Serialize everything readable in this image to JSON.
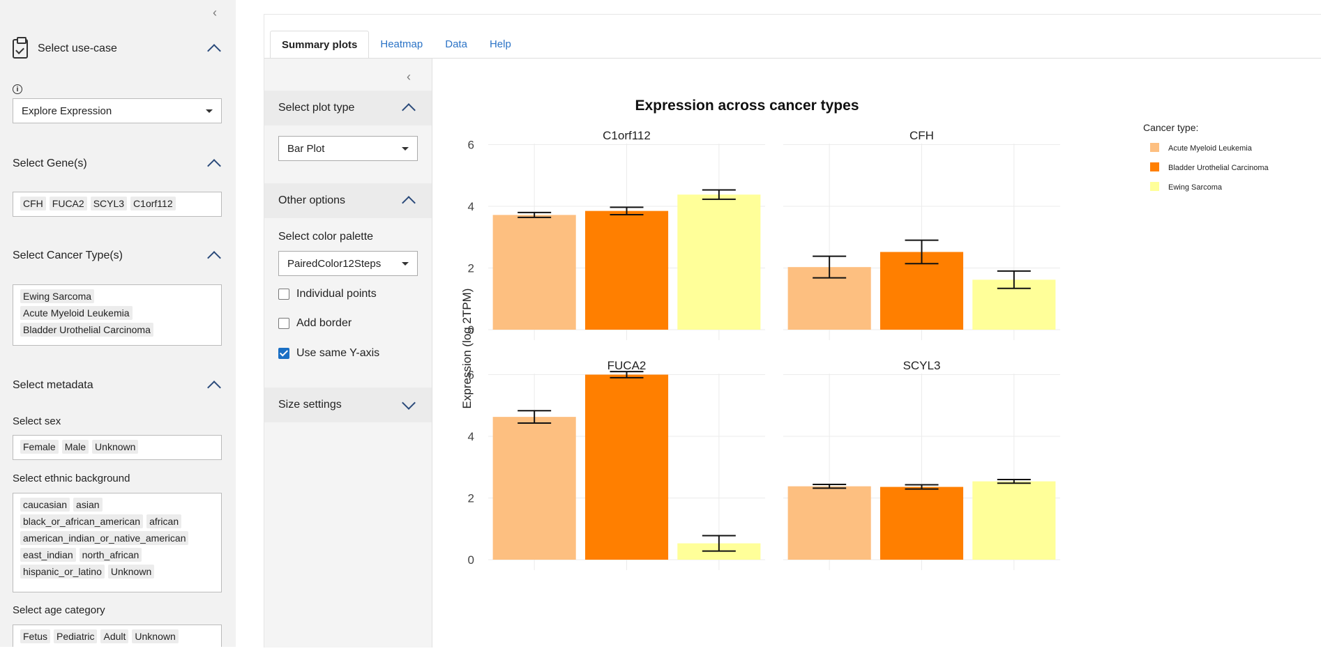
{
  "sidebar": {
    "usecase": {
      "title": "Select use-case",
      "value": "Explore Expression"
    },
    "genes": {
      "title": "Select Gene(s)",
      "tags": [
        "CFH",
        "FUCA2",
        "SCYL3",
        "C1orf112"
      ]
    },
    "cancer": {
      "title": "Select Cancer Type(s)",
      "tags": [
        "Ewing Sarcoma",
        "Acute Myeloid Leukemia",
        "Bladder Urothelial Carcinoma"
      ]
    },
    "metadata": {
      "title": "Select metadata"
    },
    "sex": {
      "label": "Select sex",
      "tags": [
        "Female",
        "Male",
        "Unknown"
      ]
    },
    "ethnic": {
      "label": "Select ethnic background",
      "tags": [
        "caucasian",
        "asian",
        "black_or_african_american",
        "african",
        "american_indian_or_native_american",
        "east_indian",
        "north_african",
        "hispanic_or_latino",
        "Unknown"
      ]
    },
    "age": {
      "label": "Select age category",
      "tags": [
        "Fetus",
        "Pediatric",
        "Adult",
        "Unknown"
      ]
    }
  },
  "tabs": [
    "Summary plots",
    "Heatmap",
    "Data",
    "Help"
  ],
  "options": {
    "plot_type": {
      "title": "Select plot type",
      "value": "Bar Plot"
    },
    "other": {
      "title": "Other options",
      "palette_label": "Select color palette",
      "palette_value": "PairedColor12Steps"
    },
    "checkboxes": [
      {
        "label": "Individual points",
        "checked": false
      },
      {
        "label": "Add border",
        "checked": false
      },
      {
        "label": "Use same Y-axis",
        "checked": true
      }
    ],
    "size": {
      "title": "Size settings"
    }
  },
  "chart_data": {
    "type": "bar",
    "title": "Expression across cancer types",
    "ylabel": "Expression (log 2TPM)",
    "ylim": [
      0,
      6.4
    ],
    "yticks": [
      0,
      2,
      4,
      6
    ],
    "legend_title": "Cancer type:",
    "legend_position": "top-right",
    "grid": true,
    "categories": [
      "Acute Myeloid Leukemia",
      "Bladder Urothelial Carcinoma",
      "Ewing Sarcoma"
    ],
    "colors": [
      "#FDBF80",
      "#FF7F00",
      "#FFFF99"
    ],
    "panels": [
      {
        "gene": "C1orf112",
        "values": [
          3.72,
          3.85,
          4.38
        ],
        "err": [
          0.08,
          0.12,
          0.15
        ]
      },
      {
        "gene": "CFH",
        "values": [
          2.03,
          2.52,
          1.62
        ],
        "err": [
          0.35,
          0.38,
          0.28
        ]
      },
      {
        "gene": "FUCA2",
        "values": [
          4.63,
          6.0,
          0.53
        ],
        "err": [
          0.2,
          0.1,
          0.25
        ]
      },
      {
        "gene": "SCYL3",
        "values": [
          2.38,
          2.36,
          2.54
        ],
        "err": [
          0.06,
          0.07,
          0.06
        ]
      }
    ]
  }
}
